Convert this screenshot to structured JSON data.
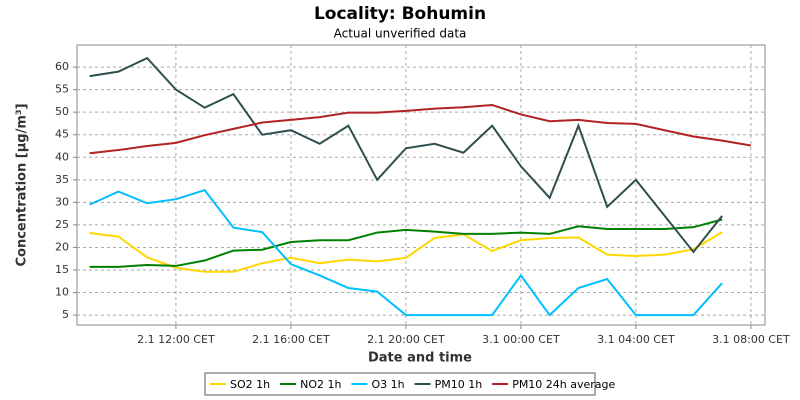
{
  "chart_data": {
    "type": "line",
    "title": "Locality: Bohumin",
    "subtitle": "Actual unverified data",
    "x_label": "Date and time",
    "y_label": "Concentration [µg/m³]",
    "x": [
      9,
      10,
      11,
      12,
      13,
      14,
      15,
      16,
      17,
      18,
      19,
      20,
      21,
      22,
      23,
      24,
      25,
      26,
      27,
      28,
      29,
      30,
      31,
      32
    ],
    "xlim": [
      8.56,
      32.49
    ],
    "xticks": [
      {
        "value": 12,
        "label": "2.1 12:00 CET"
      },
      {
        "value": 16,
        "label": "2.1 16:00 CET"
      },
      {
        "value": 20,
        "label": "2.1 20:00 CET"
      },
      {
        "value": 24,
        "label": "3.1 00:00 CET"
      },
      {
        "value": 28,
        "label": "3.1 04:00 CET"
      },
      {
        "value": 32,
        "label": "3.1 08:00 CET"
      }
    ],
    "ylim": [
      2.8,
      64.9
    ],
    "yticks": [
      5,
      10,
      15,
      20,
      25,
      30,
      35,
      40,
      45,
      50,
      55,
      60
    ],
    "grid": true,
    "legend": "bottom",
    "series": [
      {
        "name": "SO2 1h",
        "color": "#ffd700",
        "values": [
          23.2,
          22.4,
          17.8,
          15.5,
          14.6,
          14.6,
          16.5,
          17.7,
          16.5,
          17.3,
          16.9,
          17.7,
          22.1,
          22.9,
          19.2,
          21.6,
          22.1,
          22.2,
          18.4,
          18.1,
          18.4,
          19.6,
          23.4,
          null
        ]
      },
      {
        "name": "NO2 1h",
        "color": "#008000",
        "values": [
          15.7,
          15.7,
          16.1,
          15.9,
          17.1,
          19.3,
          19.5,
          21.2,
          21.6,
          21.6,
          23.3,
          23.9,
          23.5,
          23.0,
          23.0,
          23.3,
          23.0,
          24.7,
          24.1,
          24.1,
          24.1,
          24.5,
          26.2,
          null
        ]
      },
      {
        "name": "O3 1h",
        "color": "#00bfff",
        "values": [
          29.5,
          32.4,
          29.8,
          30.7,
          32.7,
          24.4,
          23.4,
          16.3,
          13.8,
          11.0,
          10.2,
          5,
          5,
          5,
          5,
          13.8,
          5,
          11.0,
          13.0,
          5,
          5,
          5,
          12.1,
          null
        ]
      },
      {
        "name": "PM10 1h",
        "color": "#2f4f4f",
        "values": [
          58,
          59,
          62,
          55,
          51,
          54,
          45,
          46,
          43,
          47,
          35,
          42,
          43,
          41,
          47,
          38,
          31,
          47,
          29,
          35,
          27,
          19,
          27,
          null
        ]
      },
      {
        "name": "PM10 24h average",
        "color": "#b22222",
        "values": [
          40.9,
          41.6,
          42.5,
          43.2,
          44.9,
          46.3,
          47.7,
          48.3,
          48.9,
          49.9,
          49.9,
          50.3,
          50.8,
          51.1,
          51.6,
          49.5,
          48.0,
          48.3,
          47.6,
          47.4,
          46.0,
          44.6,
          43.7,
          42.6
        ]
      }
    ]
  }
}
